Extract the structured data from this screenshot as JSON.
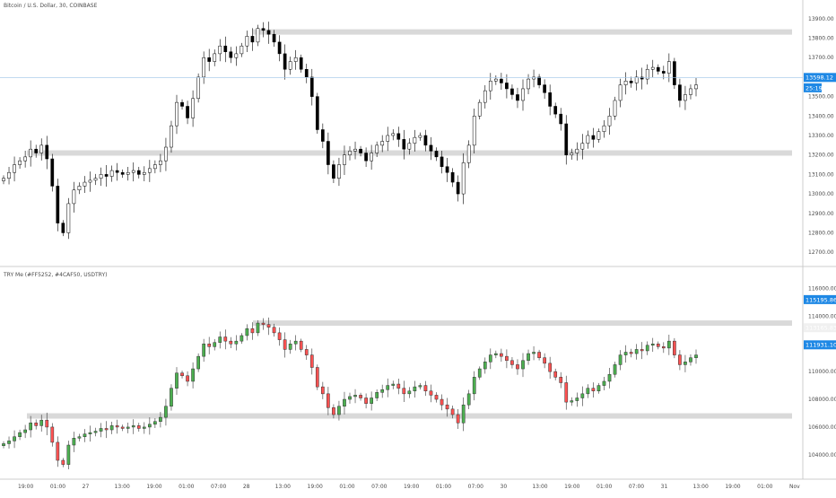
{
  "panels": {
    "top": {
      "title": "Bitcoin / U.S. Dollar, 30, COINBASE",
      "yticks": [
        12700,
        12800,
        12900,
        13000,
        13100,
        13200,
        13300,
        13400,
        13500,
        13600,
        13700,
        13800,
        13900
      ],
      "ylim": [
        12650,
        13950
      ],
      "badges": [
        {
          "text": "13598.12",
          "value": 13598.12,
          "color": "#1e88e5"
        },
        {
          "text": "25:19",
          "value": 13545,
          "color": "#1e88e5"
        }
      ],
      "price_line": 13598.12,
      "zones": [
        13832,
        13210
      ],
      "closes": [
        13080,
        13110,
        13150,
        13170,
        13190,
        13230,
        13210,
        13250,
        13180,
        13040,
        12850,
        12800,
        12950,
        13020,
        13040,
        13060,
        13070,
        13080,
        13100,
        13090,
        13120,
        13110,
        13100,
        13110,
        13120,
        13100,
        13110,
        13130,
        13150,
        13170,
        13240,
        13350,
        13470,
        13450,
        13390,
        13490,
        13600,
        13700,
        13680,
        13720,
        13760,
        13730,
        13700,
        13720,
        13760,
        13810,
        13780,
        13850,
        13840,
        13820,
        13780,
        13720,
        13640,
        13680,
        13700,
        13640,
        13600,
        13500,
        13330,
        13270,
        13150,
        13080,
        13150,
        13200,
        13220,
        13230,
        13210,
        13170,
        13210,
        13250,
        13270,
        13300,
        13310,
        13280,
        13230,
        13260,
        13290,
        13300,
        13250,
        13220,
        13190,
        13140,
        13110,
        13060,
        13000,
        13160,
        13250,
        13400,
        13470,
        13530,
        13580,
        13590,
        13570,
        13540,
        13510,
        13480,
        13540,
        13590,
        13600,
        13560,
        13520,
        13450,
        13410,
        13360,
        13200,
        13210,
        13230,
        13260,
        13300,
        13280,
        13320,
        13350,
        13400,
        13480,
        13560,
        13580,
        13570,
        13600,
        13590,
        13640,
        13650,
        13630,
        13620,
        13680,
        13560,
        13480,
        13510,
        13540,
        13560
      ]
    },
    "bottom": {
      "title": "TRY Me (#FF5252, #4CAF50, USDTRY)",
      "yticks": [
        104000,
        106000,
        108000,
        110000,
        112000,
        114000,
        116000
      ],
      "ylim": [
        102500,
        117000
      ],
      "badges": [
        {
          "text": "115195.868",
          "value": 115195.868,
          "color": "#1e88e5"
        },
        {
          "text": "113165.831",
          "value": 113165.831,
          "color": "#f0f0f0"
        },
        {
          "text": "111931.103",
          "value": 111931.103,
          "color": "#1e88e5"
        }
      ],
      "zones": [
        113500,
        106800
      ],
      "closes": [
        104800,
        105000,
        105300,
        105600,
        105800,
        106300,
        106100,
        106500,
        106000,
        104900,
        103600,
        103300,
        104700,
        105200,
        105300,
        105500,
        105600,
        105700,
        105900,
        105800,
        106100,
        106000,
        105900,
        106000,
        106100,
        105900,
        106000,
        106200,
        106400,
        106700,
        107500,
        108800,
        109900,
        109700,
        109300,
        110200,
        111100,
        112000,
        111800,
        112100,
        112500,
        112200,
        112000,
        112200,
        112600,
        113100,
        112800,
        113500,
        113400,
        113200,
        112800,
        112300,
        111600,
        112000,
        112200,
        111600,
        111200,
        110300,
        108900,
        108400,
        107400,
        106900,
        107500,
        108000,
        108200,
        108300,
        108100,
        107700,
        108100,
        108500,
        108700,
        109000,
        109100,
        108800,
        108400,
        108600,
        108900,
        109000,
        108600,
        108300,
        108000,
        107600,
        107300,
        106900,
        106300,
        107600,
        108400,
        109600,
        110200,
        110700,
        111200,
        111300,
        111100,
        110800,
        110500,
        110200,
        110800,
        111300,
        111400,
        111000,
        110600,
        110000,
        109600,
        109200,
        107800,
        107900,
        108100,
        108400,
        108800,
        108600,
        109000,
        109300,
        109800,
        110500,
        111200,
        111400,
        111300,
        111600,
        111500,
        111900,
        112000,
        111800,
        111700,
        112200,
        111200,
        110500,
        110700,
        111000,
        111200
      ]
    }
  },
  "extra_bottom": {
    "last_section_closes": [
      113500,
      113400,
      113600,
      113700,
      113800,
      113500,
      113700,
      114000,
      113600,
      113900,
      113800,
      113700,
      113900,
      114100,
      113600,
      112900,
      113100,
      113000,
      113165
    ]
  },
  "xaxis": {
    "labels": [
      "19:00",
      "01:00",
      "07:00",
      "13:00",
      "19:00",
      "01:00",
      "07:00",
      "13:00",
      "19:00",
      "01:00",
      "07:00",
      "13:00",
      "19:00",
      "01:00",
      "07:00",
      "13:00",
      "19:00",
      "01:00",
      "07:00",
      "13:00",
      "19:00",
      "01:00",
      "Nov"
    ],
    "bold_labels": [
      "27",
      "28",
      "30",
      "31"
    ]
  },
  "x_axis_ticks": [
    {
      "label": "19:00"
    },
    {
      "label": "01:00"
    },
    {
      "label": "27"
    },
    {
      "label": "13:00"
    },
    {
      "label": "19:00"
    },
    {
      "label": "01:00"
    },
    {
      "label": "07:00"
    },
    {
      "label": "28"
    },
    {
      "label": "13:00"
    },
    {
      "label": "19:00"
    },
    {
      "label": "01:00"
    },
    {
      "label": "07:00"
    },
    {
      "label": "19:00"
    },
    {
      "label": "01:00"
    },
    {
      "label": "07:00"
    },
    {
      "label": "30"
    },
    {
      "label": "13:00"
    },
    {
      "label": "19:00"
    },
    {
      "label": "01:00"
    },
    {
      "label": "07:00"
    },
    {
      "label": "31"
    },
    {
      "label": "13:00"
    },
    {
      "label": "19:00"
    },
    {
      "label": "01:00"
    },
    {
      "label": "Nov"
    }
  ],
  "colors": {
    "up": "#4caf50",
    "down": "#ff5252",
    "btc": "#000000",
    "zone": "#d9d9d9",
    "grid_text": "#4a4a4a",
    "separator": "#cccccc",
    "price_line": "#9ec4e8"
  },
  "chart_data": [
    {
      "type": "candlestick",
      "title": "Bitcoin / U.S. Dollar, 30, COINBASE",
      "ylim": [
        12650,
        13950
      ]
    },
    {
      "type": "candlestick",
      "title": "TRY Me (#FF5252, #4CAF50, USDTRY)",
      "ylim": [
        102500,
        117000
      ]
    }
  ]
}
